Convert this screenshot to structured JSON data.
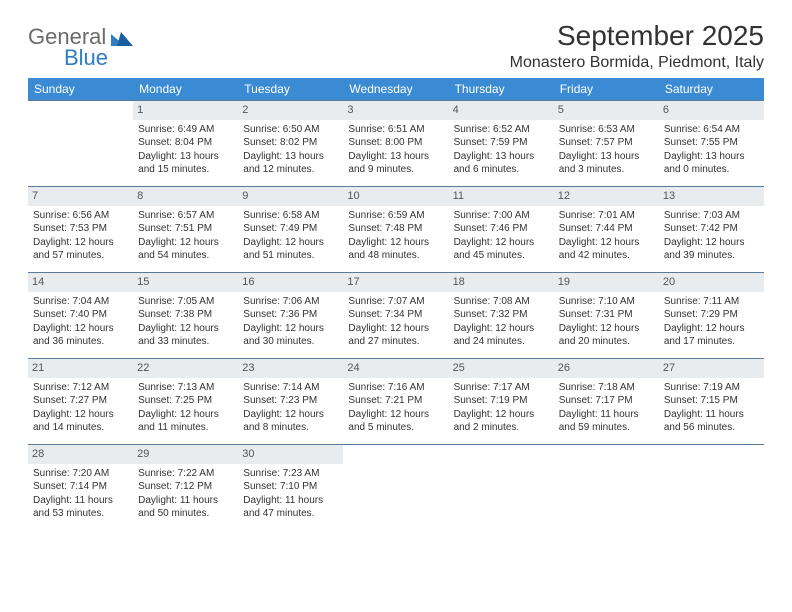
{
  "brand": {
    "first": "General",
    "second": "Blue"
  },
  "title": "September 2025",
  "location": "Monastero Bormida, Piedmont, Italy",
  "colors": {
    "header_bg": "#3b8bd4",
    "header_fg": "#ffffff",
    "daynum_bg": "#e8ecef",
    "border": "#5b7a99",
    "logo_gray": "#6b6b6b",
    "logo_blue": "#2e7cc4"
  },
  "day_headers": [
    "Sunday",
    "Monday",
    "Tuesday",
    "Wednesday",
    "Thursday",
    "Friday",
    "Saturday"
  ],
  "weeks": [
    [
      {
        "n": "",
        "lines": []
      },
      {
        "n": "1",
        "lines": [
          "Sunrise: 6:49 AM",
          "Sunset: 8:04 PM",
          "Daylight: 13 hours",
          "and 15 minutes."
        ]
      },
      {
        "n": "2",
        "lines": [
          "Sunrise: 6:50 AM",
          "Sunset: 8:02 PM",
          "Daylight: 13 hours",
          "and 12 minutes."
        ]
      },
      {
        "n": "3",
        "lines": [
          "Sunrise: 6:51 AM",
          "Sunset: 8:00 PM",
          "Daylight: 13 hours",
          "and 9 minutes."
        ]
      },
      {
        "n": "4",
        "lines": [
          "Sunrise: 6:52 AM",
          "Sunset: 7:59 PM",
          "Daylight: 13 hours",
          "and 6 minutes."
        ]
      },
      {
        "n": "5",
        "lines": [
          "Sunrise: 6:53 AM",
          "Sunset: 7:57 PM",
          "Daylight: 13 hours",
          "and 3 minutes."
        ]
      },
      {
        "n": "6",
        "lines": [
          "Sunrise: 6:54 AM",
          "Sunset: 7:55 PM",
          "Daylight: 13 hours",
          "and 0 minutes."
        ]
      }
    ],
    [
      {
        "n": "7",
        "lines": [
          "Sunrise: 6:56 AM",
          "Sunset: 7:53 PM",
          "Daylight: 12 hours",
          "and 57 minutes."
        ]
      },
      {
        "n": "8",
        "lines": [
          "Sunrise: 6:57 AM",
          "Sunset: 7:51 PM",
          "Daylight: 12 hours",
          "and 54 minutes."
        ]
      },
      {
        "n": "9",
        "lines": [
          "Sunrise: 6:58 AM",
          "Sunset: 7:49 PM",
          "Daylight: 12 hours",
          "and 51 minutes."
        ]
      },
      {
        "n": "10",
        "lines": [
          "Sunrise: 6:59 AM",
          "Sunset: 7:48 PM",
          "Daylight: 12 hours",
          "and 48 minutes."
        ]
      },
      {
        "n": "11",
        "lines": [
          "Sunrise: 7:00 AM",
          "Sunset: 7:46 PM",
          "Daylight: 12 hours",
          "and 45 minutes."
        ]
      },
      {
        "n": "12",
        "lines": [
          "Sunrise: 7:01 AM",
          "Sunset: 7:44 PM",
          "Daylight: 12 hours",
          "and 42 minutes."
        ]
      },
      {
        "n": "13",
        "lines": [
          "Sunrise: 7:03 AM",
          "Sunset: 7:42 PM",
          "Daylight: 12 hours",
          "and 39 minutes."
        ]
      }
    ],
    [
      {
        "n": "14",
        "lines": [
          "Sunrise: 7:04 AM",
          "Sunset: 7:40 PM",
          "Daylight: 12 hours",
          "and 36 minutes."
        ]
      },
      {
        "n": "15",
        "lines": [
          "Sunrise: 7:05 AM",
          "Sunset: 7:38 PM",
          "Daylight: 12 hours",
          "and 33 minutes."
        ]
      },
      {
        "n": "16",
        "lines": [
          "Sunrise: 7:06 AM",
          "Sunset: 7:36 PM",
          "Daylight: 12 hours",
          "and 30 minutes."
        ]
      },
      {
        "n": "17",
        "lines": [
          "Sunrise: 7:07 AM",
          "Sunset: 7:34 PM",
          "Daylight: 12 hours",
          "and 27 minutes."
        ]
      },
      {
        "n": "18",
        "lines": [
          "Sunrise: 7:08 AM",
          "Sunset: 7:32 PM",
          "Daylight: 12 hours",
          "and 24 minutes."
        ]
      },
      {
        "n": "19",
        "lines": [
          "Sunrise: 7:10 AM",
          "Sunset: 7:31 PM",
          "Daylight: 12 hours",
          "and 20 minutes."
        ]
      },
      {
        "n": "20",
        "lines": [
          "Sunrise: 7:11 AM",
          "Sunset: 7:29 PM",
          "Daylight: 12 hours",
          "and 17 minutes."
        ]
      }
    ],
    [
      {
        "n": "21",
        "lines": [
          "Sunrise: 7:12 AM",
          "Sunset: 7:27 PM",
          "Daylight: 12 hours",
          "and 14 minutes."
        ]
      },
      {
        "n": "22",
        "lines": [
          "Sunrise: 7:13 AM",
          "Sunset: 7:25 PM",
          "Daylight: 12 hours",
          "and 11 minutes."
        ]
      },
      {
        "n": "23",
        "lines": [
          "Sunrise: 7:14 AM",
          "Sunset: 7:23 PM",
          "Daylight: 12 hours",
          "and 8 minutes."
        ]
      },
      {
        "n": "24",
        "lines": [
          "Sunrise: 7:16 AM",
          "Sunset: 7:21 PM",
          "Daylight: 12 hours",
          "and 5 minutes."
        ]
      },
      {
        "n": "25",
        "lines": [
          "Sunrise: 7:17 AM",
          "Sunset: 7:19 PM",
          "Daylight: 12 hours",
          "and 2 minutes."
        ]
      },
      {
        "n": "26",
        "lines": [
          "Sunrise: 7:18 AM",
          "Sunset: 7:17 PM",
          "Daylight: 11 hours",
          "and 59 minutes."
        ]
      },
      {
        "n": "27",
        "lines": [
          "Sunrise: 7:19 AM",
          "Sunset: 7:15 PM",
          "Daylight: 11 hours",
          "and 56 minutes."
        ]
      }
    ],
    [
      {
        "n": "28",
        "lines": [
          "Sunrise: 7:20 AM",
          "Sunset: 7:14 PM",
          "Daylight: 11 hours",
          "and 53 minutes."
        ]
      },
      {
        "n": "29",
        "lines": [
          "Sunrise: 7:22 AM",
          "Sunset: 7:12 PM",
          "Daylight: 11 hours",
          "and 50 minutes."
        ]
      },
      {
        "n": "30",
        "lines": [
          "Sunrise: 7:23 AM",
          "Sunset: 7:10 PM",
          "Daylight: 11 hours",
          "and 47 minutes."
        ]
      },
      {
        "n": "",
        "lines": []
      },
      {
        "n": "",
        "lines": []
      },
      {
        "n": "",
        "lines": []
      },
      {
        "n": "",
        "lines": []
      }
    ]
  ]
}
